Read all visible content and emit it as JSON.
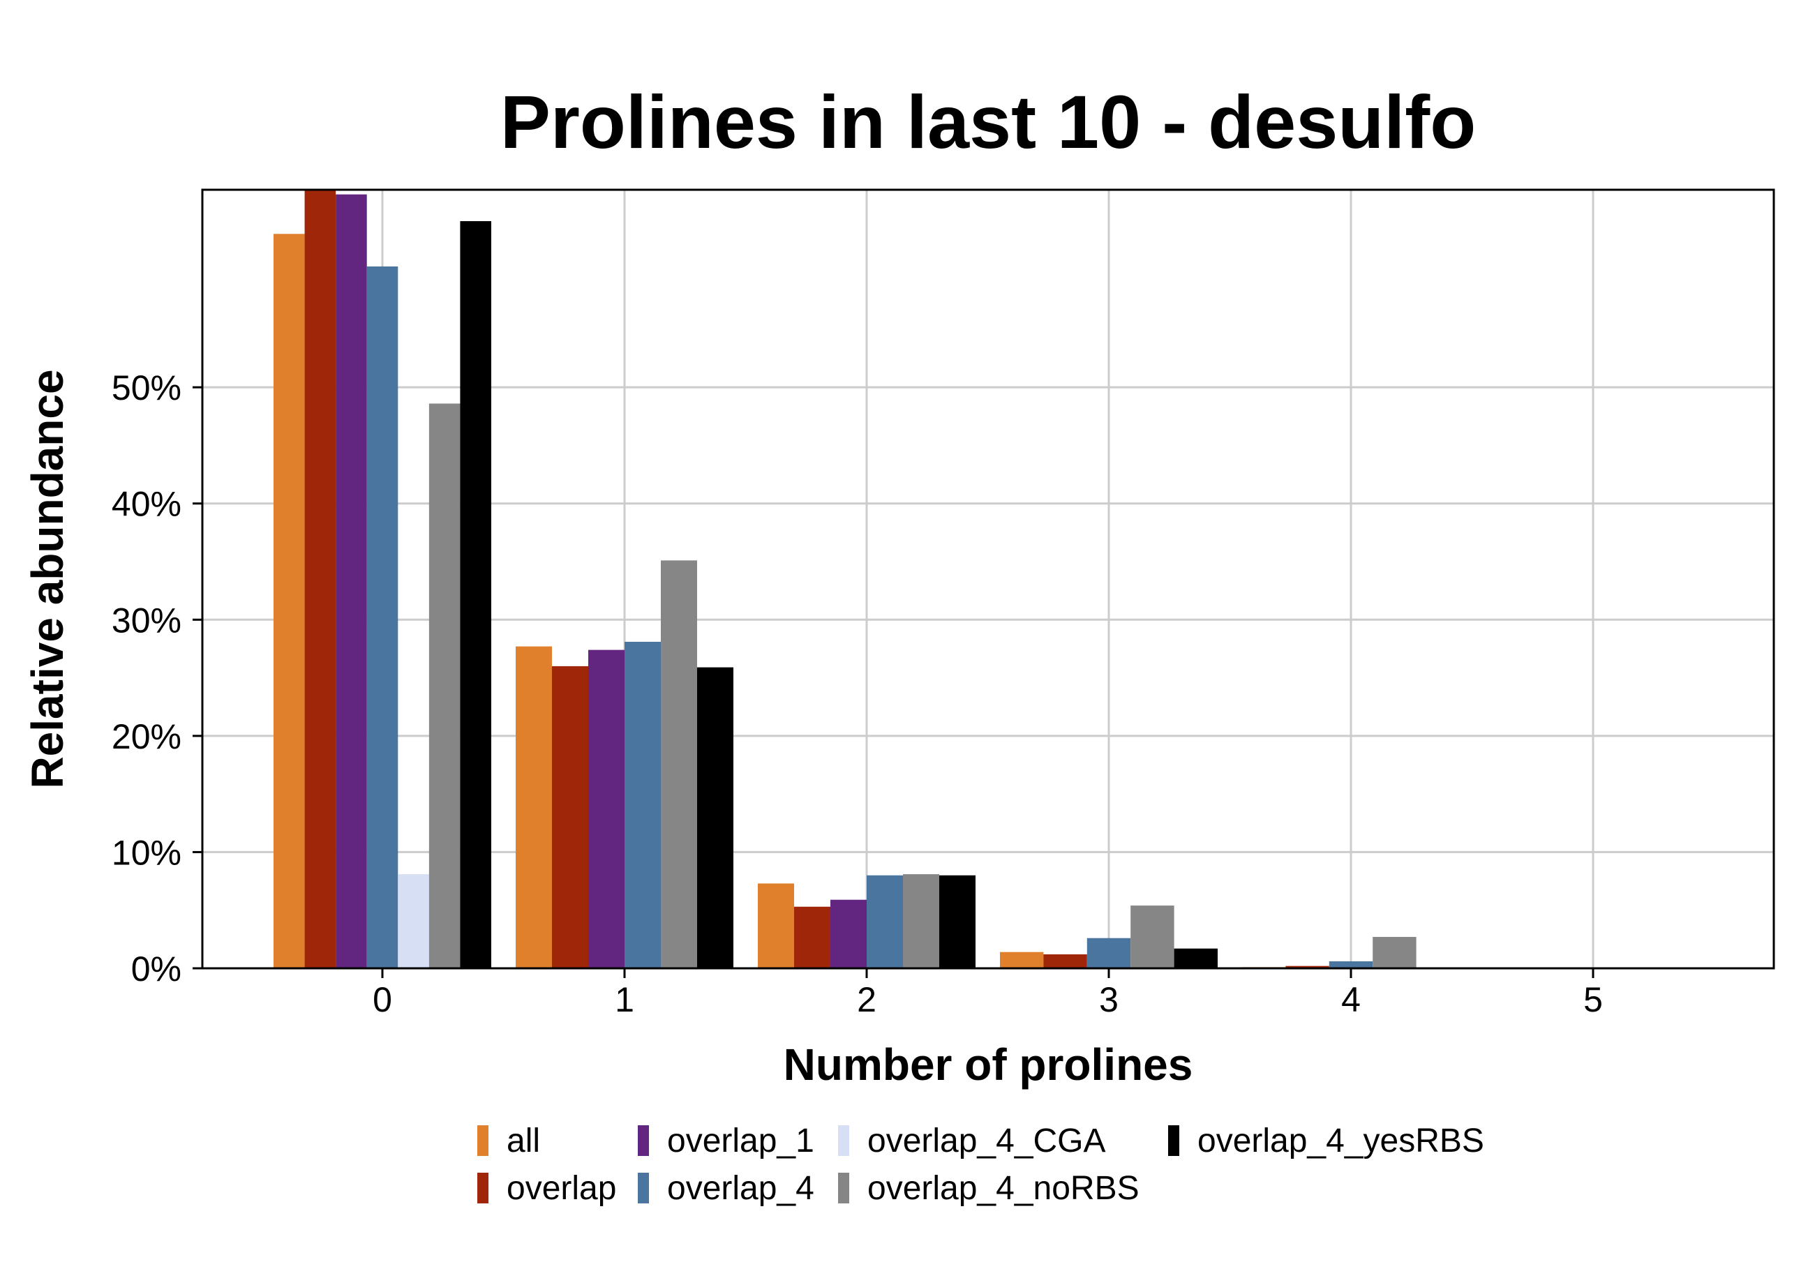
{
  "chart_data": {
    "type": "bar",
    "title": "Prolines in last 10 - desulfo",
    "xlabel": "Number of prolines",
    "ylabel": "Relative abundance",
    "categories": [
      "0",
      "1",
      "2",
      "3",
      "4",
      "5"
    ],
    "y_ticks": [
      0,
      10,
      20,
      30,
      40,
      50
    ],
    "y_tick_labels": [
      "0%",
      "10%",
      "20%",
      "30%",
      "40%",
      "50%"
    ],
    "ylim": [
      0,
      67
    ],
    "grid": true,
    "legend_position": "bottom",
    "series": [
      {
        "name": "all",
        "color": "#E07F2C",
        "values": [
          63.2,
          27.7,
          7.3,
          1.4,
          0.1,
          0.0
        ]
      },
      {
        "name": "overlap",
        "color": "#A0260A",
        "values": [
          67.5,
          26.0,
          5.3,
          1.2,
          0.2,
          0.0
        ]
      },
      {
        "name": "overlap_1",
        "color": "#622680",
        "values": [
          66.6,
          27.4,
          5.9,
          null,
          null,
          null
        ]
      },
      {
        "name": "overlap_4",
        "color": "#4A759F",
        "values": [
          60.4,
          28.1,
          8.0,
          2.6,
          0.6,
          0.0
        ]
      },
      {
        "name": "overlap_4_CGA",
        "color": "#D7DFF5",
        "values": [
          8.1,
          null,
          null,
          null,
          null,
          null
        ]
      },
      {
        "name": "overlap_4_noRBS",
        "color": "#868686",
        "values": [
          48.6,
          35.1,
          8.1,
          5.4,
          2.7,
          0.0
        ]
      },
      {
        "name": "overlap_4_yesRBS",
        "color": "#000000",
        "values": [
          64.3,
          25.9,
          8.0,
          1.7,
          0.0,
          0.0
        ]
      }
    ]
  }
}
